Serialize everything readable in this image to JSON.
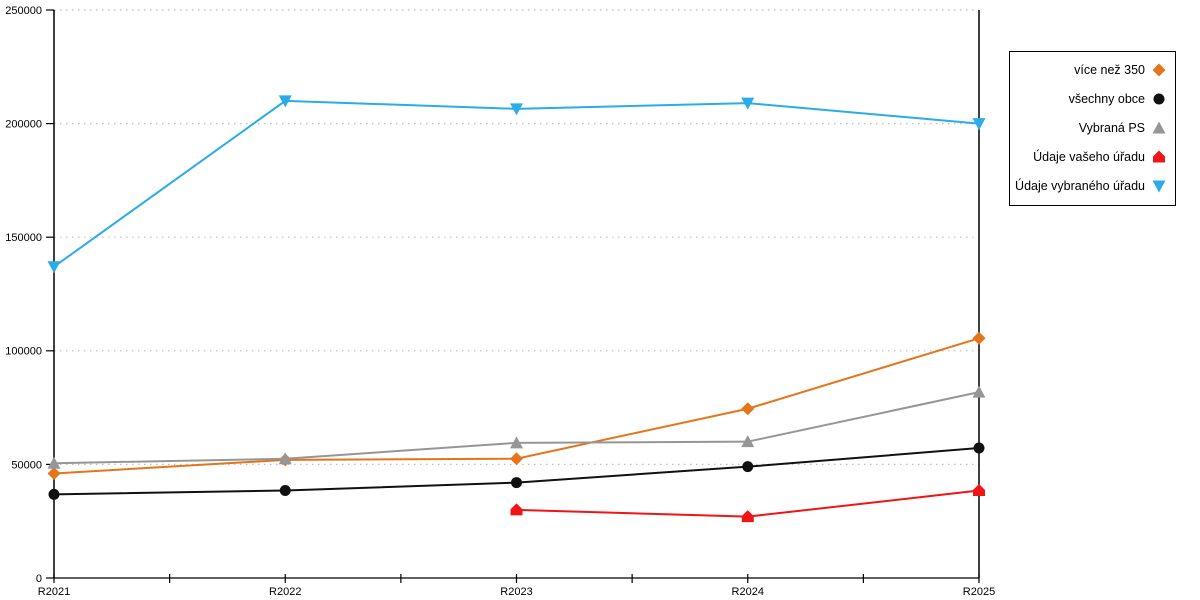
{
  "chart_data": {
    "type": "line",
    "title": "",
    "xlabel": "",
    "ylabel": "",
    "categories": [
      "R2021",
      "R2022",
      "R2023",
      "R2024",
      "R2025"
    ],
    "y_ticks": [
      0,
      50000,
      100000,
      150000,
      200000,
      250000
    ],
    "ylim": [
      0,
      250000
    ],
    "grid": "horizontal-dotted",
    "grid_color": "#bdbdbd",
    "axis_color": "#000000",
    "legend_position": "outside-right",
    "series": [
      {
        "name": "více než 350",
        "color": "#e4751a",
        "marker": "diamond",
        "values": [
          46000,
          52000,
          52500,
          74500,
          105500
        ]
      },
      {
        "name": "všechny obce",
        "color": "#111111",
        "marker": "circle",
        "values": [
          36800,
          38500,
          42000,
          49000,
          57200
        ]
      },
      {
        "name": "Vybraná PS",
        "color": "#969696",
        "marker": "triangle-up",
        "values": [
          50500,
          52500,
          59500,
          60000,
          81800
        ]
      },
      {
        "name": "Údaje vašeho úřadu",
        "color": "#f01414",
        "marker": "house",
        "values": [
          null,
          null,
          30000,
          27000,
          38500
        ]
      },
      {
        "name": "Údaje vybraného úřadu",
        "color": "#29ace8",
        "marker": "triangle-down",
        "values": [
          137000,
          210000,
          206500,
          209000,
          200000
        ]
      }
    ]
  }
}
